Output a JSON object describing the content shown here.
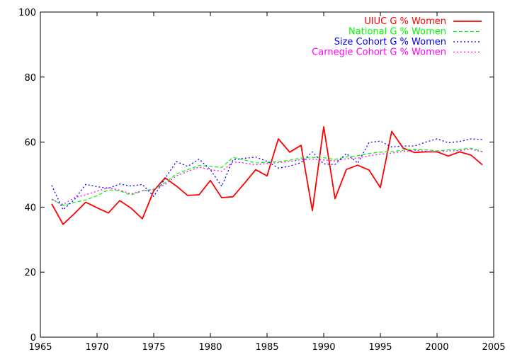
{
  "chart_data": {
    "type": "line",
    "title": "",
    "xlabel": "",
    "ylabel": "",
    "xlim": [
      1965,
      2005
    ],
    "ylim": [
      0,
      100
    ],
    "xticks": [
      "1965",
      "1970",
      "1975",
      "1980",
      "1985",
      "1990",
      "1995",
      "2000",
      "2005"
    ],
    "yticks": [
      "0",
      "20",
      "40",
      "60",
      "80",
      "100"
    ],
    "grid": false,
    "legend_position": "top-right",
    "x": [
      1966,
      1967,
      1968,
      1969,
      1970,
      1971,
      1972,
      1973,
      1974,
      1975,
      1976,
      1977,
      1978,
      1979,
      1980,
      1981,
      1982,
      1983,
      1984,
      1985,
      1986,
      1987,
      1988,
      1989,
      1990,
      1991,
      1992,
      1993,
      1994,
      1995,
      1996,
      1997,
      1998,
      1999,
      2000,
      2001,
      2002,
      2003,
      2004
    ],
    "series": [
      {
        "name": "UIUC G % Women",
        "color": "#ff0000",
        "dash": "solid",
        "values": [
          41.0,
          34.7,
          38.0,
          41.5,
          39.8,
          38.2,
          42.0,
          39.7,
          36.4,
          45.0,
          49.0,
          46.5,
          43.6,
          43.8,
          48.2,
          42.9,
          43.2,
          47.3,
          51.5,
          49.6,
          61.0,
          56.9,
          59.0,
          38.9,
          64.7,
          42.6,
          51.6,
          52.9,
          51.4,
          46.0,
          63.3,
          58.2,
          56.8,
          57.0,
          57.0,
          55.7,
          57.0,
          56.0,
          53.0
        ]
      },
      {
        "name": "National G % Women",
        "color": "#00ff00",
        "dash": "dashed",
        "values": [
          42.5,
          40.5,
          41.5,
          42.2,
          43.5,
          45.3,
          45.0,
          43.7,
          45.0,
          45.5,
          47.5,
          50.2,
          51.5,
          52.8,
          52.5,
          52.2,
          55.3,
          54.5,
          53.6,
          53.8,
          54.0,
          54.4,
          55.1,
          55.3,
          55.2,
          54.7,
          55.4,
          55.8,
          56.5,
          56.9,
          57.1,
          57.5,
          57.8,
          57.6,
          57.3,
          57.6,
          57.8,
          58.1,
          57.1
        ]
      },
      {
        "name": "Size Cohort G % Women",
        "color": "#0000ff",
        "dash": "dotted",
        "values": [
          46.7,
          39.2,
          42.3,
          47.0,
          46.3,
          45.8,
          47.1,
          46.5,
          47.0,
          43.3,
          48.8,
          54.0,
          52.5,
          54.8,
          51.5,
          46.4,
          54.6,
          55.0,
          55.4,
          54.1,
          52.0,
          52.6,
          53.7,
          57.0,
          53.3,
          53.1,
          56.5,
          53.5,
          59.9,
          60.3,
          58.5,
          58.8,
          58.8,
          60.0,
          61.0,
          59.8,
          60.2,
          61.0,
          60.8
        ]
      },
      {
        "name": "Carnegie Cohort G % Women",
        "color": "#ff00ff",
        "dash": "dotted",
        "values": [
          42.3,
          40.8,
          42.9,
          43.8,
          44.9,
          45.9,
          45.2,
          44.1,
          45.0,
          45.4,
          47.0,
          49.6,
          51.0,
          52.3,
          51.5,
          51.0,
          53.9,
          53.6,
          53.0,
          53.4,
          53.7,
          54.0,
          54.6,
          54.8,
          54.5,
          54.2,
          54.9,
          55.1,
          55.8,
          56.3,
          56.6,
          57.1,
          57.5,
          57.2,
          56.9,
          57.3,
          57.4,
          57.8,
          57.0
        ]
      }
    ]
  }
}
